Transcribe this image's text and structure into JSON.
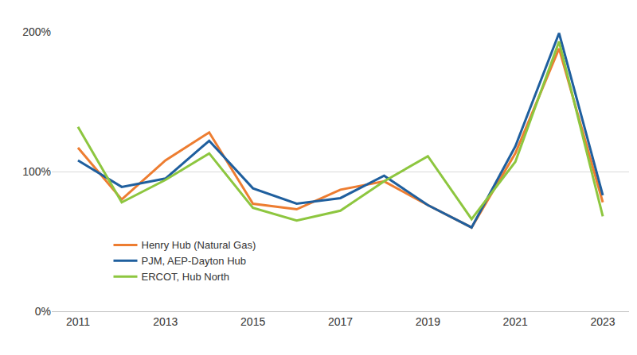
{
  "chart_data": {
    "type": "line",
    "x": [
      2011,
      2012,
      2013,
      2014,
      2015,
      2016,
      2017,
      2018,
      2019,
      2020,
      2021,
      2022,
      2023
    ],
    "series": [
      {
        "name": "Henry Hub (Natural Gas)",
        "color": "#ED7D31",
        "values": [
          117,
          80,
          108,
          128,
          77,
          73,
          87,
          93,
          76,
          60,
          113,
          188,
          78
        ]
      },
      {
        "name": "PJM, AEP-Dayton Hub",
        "color": "#1F5F9E",
        "values": [
          108,
          89,
          95,
          122,
          88,
          77,
          81,
          97,
          76,
          60,
          118,
          199,
          83
        ]
      },
      {
        "name": "ERCOT, Hub North",
        "color": "#8DC63F",
        "values": [
          132,
          78,
          94,
          113,
          74,
          65,
          72,
          93,
          111,
          66,
          107,
          193,
          68
        ]
      }
    ],
    "xlim": [
      2010.4,
      2023.6
    ],
    "xticks": [
      2011,
      2013,
      2015,
      2017,
      2019,
      2021,
      2023
    ],
    "ylim": [
      0,
      200
    ],
    "yticks": [
      {
        "value": 0,
        "label": "0%"
      },
      {
        "value": 100,
        "label": "100%"
      },
      {
        "value": 200,
        "label": "200%"
      }
    ],
    "grid": true,
    "legend": "lower left"
  }
}
